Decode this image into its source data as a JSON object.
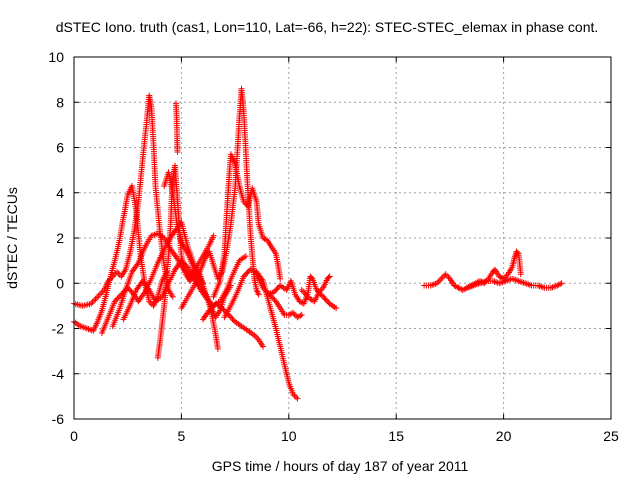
{
  "chart_data": {
    "type": "scatter",
    "title": "dSTEC Iono. truth (cas1, Lon=110, Lat=-66, h=22): STEC-STEC_elemax in phase cont.",
    "xlabel": "GPS time / hours of day 187 of year 2011",
    "ylabel": "dSTEC  / TECUs",
    "xlim": [
      0,
      25
    ],
    "ylim": [
      -6,
      10
    ],
    "xticks": [
      0,
      5,
      10,
      15,
      20,
      25
    ],
    "yticks": [
      -6,
      -4,
      -2,
      0,
      2,
      4,
      6,
      8,
      10
    ],
    "xtick_labels": [
      "0",
      "5",
      "10",
      "15",
      "20",
      "25"
    ],
    "ytick_labels": [
      "-6",
      "-4",
      "-2",
      "0",
      "2",
      "4",
      "6",
      "8",
      "10"
    ],
    "grid": true,
    "marker": "+",
    "color": "#ff0000",
    "series": [
      {
        "name": "",
        "tracks": [
          [
            [
              0.0,
              -0.9
            ],
            [
              0.4,
              -1.0
            ],
            [
              0.8,
              -0.9
            ],
            [
              1.0,
              -0.7
            ],
            [
              1.2,
              -0.5
            ],
            [
              1.4,
              -0.3
            ],
            [
              1.6,
              0.1
            ],
            [
              1.8,
              0.3
            ],
            [
              2.0,
              0.5
            ],
            [
              2.2,
              0.3
            ],
            [
              2.4,
              0.6
            ],
            [
              2.6,
              1.3
            ],
            [
              2.8,
              2.3
            ],
            [
              3.0,
              3.6
            ],
            [
              3.2,
              5.5
            ],
            [
              3.4,
              7.3
            ],
            [
              3.5,
              8.3
            ],
            [
              3.6,
              7.8
            ],
            [
              3.7,
              6.2
            ],
            [
              3.8,
              4.2
            ],
            [
              4.0,
              2.3
            ],
            [
              4.2,
              0.8
            ],
            [
              4.4,
              -0.3
            ],
            [
              4.6,
              -0.6
            ]
          ],
          [
            [
              0.0,
              -1.7
            ],
            [
              0.3,
              -1.9
            ],
            [
              0.6,
              -2.0
            ],
            [
              0.9,
              -2.1
            ],
            [
              1.1,
              -1.7
            ],
            [
              1.3,
              -1.2
            ],
            [
              1.5,
              -0.5
            ],
            [
              1.7,
              0.3
            ],
            [
              1.9,
              1.0
            ],
            [
              2.1,
              1.8
            ],
            [
              2.3,
              2.9
            ],
            [
              2.5,
              3.9
            ],
            [
              2.7,
              4.3
            ],
            [
              2.9,
              3.2
            ],
            [
              3.1,
              1.2
            ],
            [
              3.3,
              0.0
            ],
            [
              3.5,
              -0.8
            ],
            [
              3.7,
              -1.0
            ],
            [
              3.9,
              -0.6
            ],
            [
              4.1,
              0.1
            ],
            [
              4.3,
              0.5
            ]
          ],
          [
            [
              1.3,
              -2.2
            ],
            [
              1.6,
              -1.5
            ],
            [
              1.9,
              -0.8
            ],
            [
              2.2,
              -0.5
            ],
            [
              2.5,
              -0.2
            ],
            [
              2.8,
              -0.5
            ],
            [
              3.0,
              -0.8
            ],
            [
              3.3,
              -0.4
            ],
            [
              3.6,
              0.2
            ],
            [
              3.9,
              0.9
            ],
            [
              4.1,
              1.3
            ],
            [
              4.4,
              1.9
            ],
            [
              4.7,
              2.3
            ],
            [
              5.0,
              2.7
            ],
            [
              5.3,
              1.6
            ],
            [
              5.6,
              0.8
            ],
            [
              5.9,
              0.3
            ],
            [
              6.1,
              -0.4
            ],
            [
              6.4,
              -1.1
            ],
            [
              6.6,
              -1.5
            ],
            [
              6.8,
              -1.2
            ],
            [
              7.0,
              -0.6
            ],
            [
              7.3,
              -0.1
            ]
          ],
          [
            [
              1.8,
              -1.9
            ],
            [
              2.1,
              -1.2
            ],
            [
              2.4,
              -0.3
            ],
            [
              2.7,
              0.5
            ],
            [
              3.0,
              0.9
            ],
            [
              3.3,
              1.6
            ],
            [
              3.6,
              2.1
            ],
            [
              3.9,
              2.2
            ],
            [
              4.2,
              2.0
            ],
            [
              4.5,
              1.5
            ],
            [
              4.8,
              1.1
            ],
            [
              5.1,
              0.6
            ],
            [
              5.4,
              0.3
            ],
            [
              5.7,
              0.7
            ],
            [
              6.0,
              1.2
            ],
            [
              6.3,
              1.7
            ],
            [
              6.5,
              2.1
            ]
          ],
          [
            [
              2.3,
              -1.6
            ],
            [
              2.6,
              -1.0
            ],
            [
              2.9,
              -0.3
            ],
            [
              3.2,
              0.1
            ],
            [
              3.5,
              -0.3
            ],
            [
              3.8,
              -0.8
            ],
            [
              4.1,
              -0.6
            ],
            [
              4.4,
              0.0
            ],
            [
              4.7,
              0.6
            ],
            [
              5.0,
              1.0
            ],
            [
              5.3,
              0.7
            ],
            [
              5.6,
              0.2
            ],
            [
              5.9,
              -0.3
            ],
            [
              6.2,
              -0.7
            ],
            [
              6.5,
              -1.0
            ],
            [
              6.8,
              -0.8
            ],
            [
              7.1,
              -0.3
            ],
            [
              7.4,
              0.4
            ],
            [
              7.7,
              1.0
            ],
            [
              8.0,
              1.2
            ]
          ],
          [
            [
              3.9,
              -3.3
            ],
            [
              4.0,
              -2.6
            ],
            [
              4.1,
              -1.8
            ],
            [
              4.2,
              -1.0
            ],
            [
              4.3,
              0.0
            ],
            [
              4.4,
              1.2
            ],
            [
              4.5,
              2.6
            ],
            [
              4.55,
              3.8
            ],
            [
              4.6,
              4.6
            ],
            [
              4.7,
              5.2
            ],
            [
              4.8,
              3.9
            ],
            [
              4.9,
              2.6
            ],
            [
              5.0,
              1.2
            ],
            [
              5.2,
              0.4
            ],
            [
              5.4,
              0.1
            ],
            [
              5.7,
              0.5
            ],
            [
              6.0,
              0.0
            ]
          ],
          [
            [
              4.2,
              4.3
            ],
            [
              4.4,
              4.9
            ],
            [
              4.6,
              4.0
            ],
            [
              4.8,
              2.6
            ],
            [
              5.0,
              1.8
            ],
            [
              5.3,
              1.3
            ],
            [
              5.6,
              0.6
            ],
            [
              5.9,
              -0.1
            ],
            [
              6.2,
              -0.6
            ],
            [
              6.4,
              -1.3
            ],
            [
              6.6,
              -2.3
            ],
            [
              6.7,
              -2.9
            ]
          ],
          [
            [
              5.0,
              -1.1
            ],
            [
              5.3,
              -0.6
            ],
            [
              5.6,
              -0.1
            ],
            [
              5.9,
              0.6
            ],
            [
              6.1,
              1.1
            ],
            [
              6.3,
              1.4
            ],
            [
              6.5,
              0.8
            ],
            [
              6.7,
              0.2
            ],
            [
              6.9,
              0.5
            ],
            [
              7.1,
              1.4
            ],
            [
              7.3,
              2.6
            ],
            [
              7.5,
              4.2
            ],
            [
              7.6,
              5.7
            ],
            [
              7.7,
              7.3
            ],
            [
              7.8,
              8.6
            ],
            [
              7.9,
              7.6
            ],
            [
              8.0,
              5.8
            ],
            [
              8.1,
              4.0
            ],
            [
              8.2,
              2.4
            ],
            [
              8.3,
              1.2
            ],
            [
              8.4,
              0.2
            ],
            [
              8.5,
              -0.3
            ],
            [
              8.6,
              -0.5
            ]
          ],
          [
            [
              6.5,
              -0.6
            ],
            [
              6.8,
              0.1
            ],
            [
              7.0,
              1.3
            ],
            [
              7.1,
              2.9
            ],
            [
              7.2,
              4.4
            ],
            [
              7.3,
              5.7
            ],
            [
              7.5,
              5.3
            ],
            [
              7.7,
              4.3
            ],
            [
              7.9,
              3.6
            ],
            [
              8.1,
              3.4
            ],
            [
              8.3,
              4.2
            ],
            [
              8.5,
              3.6
            ],
            [
              8.6,
              2.6
            ],
            [
              8.8,
              2.0
            ],
            [
              9.0,
              1.9
            ],
            [
              9.2,
              1.6
            ],
            [
              9.4,
              1.3
            ],
            [
              9.5,
              0.8
            ],
            [
              9.6,
              0.2
            ]
          ],
          [
            [
              7.0,
              -1.5
            ],
            [
              7.3,
              -1.0
            ],
            [
              7.6,
              -0.4
            ],
            [
              7.9,
              0.3
            ],
            [
              8.2,
              0.6
            ],
            [
              8.5,
              0.5
            ],
            [
              8.8,
              0.1
            ],
            [
              9.0,
              -0.6
            ],
            [
              9.2,
              -1.3
            ],
            [
              9.4,
              -2.0
            ],
            [
              9.6,
              -2.8
            ],
            [
              9.8,
              -3.6
            ],
            [
              10.0,
              -4.4
            ],
            [
              10.2,
              -4.9
            ],
            [
              10.4,
              -5.1
            ]
          ],
          [
            [
              6.0,
              -1.6
            ],
            [
              6.3,
              -1.2
            ],
            [
              6.6,
              -0.9
            ],
            [
              6.9,
              -1.1
            ],
            [
              7.2,
              -1.4
            ],
            [
              7.5,
              -1.7
            ],
            [
              7.8,
              -1.9
            ],
            [
              8.1,
              -2.1
            ],
            [
              8.4,
              -2.3
            ],
            [
              8.6,
              -2.5
            ],
            [
              8.8,
              -2.8
            ]
          ],
          [
            [
              8.5,
              0.4
            ],
            [
              8.8,
              -0.2
            ],
            [
              9.1,
              -0.5
            ],
            [
              9.4,
              -0.8
            ],
            [
              9.6,
              -1.1
            ],
            [
              9.8,
              -1.4
            ],
            [
              10.0,
              -1.4
            ],
            [
              10.2,
              -1.3
            ],
            [
              10.4,
              -1.5
            ],
            [
              10.6,
              -1.4
            ]
          ],
          [
            [
              9.0,
              -0.5
            ],
            [
              9.3,
              -0.4
            ],
            [
              9.6,
              -0.1
            ],
            [
              9.9,
              -0.3
            ],
            [
              10.1,
              0.1
            ],
            [
              10.3,
              -0.5
            ],
            [
              10.5,
              -0.8
            ],
            [
              10.7,
              -0.9
            ],
            [
              10.9,
              -0.4
            ],
            [
              11.0,
              0.3
            ],
            [
              11.1,
              0.2
            ],
            [
              11.3,
              -0.3
            ],
            [
              11.6,
              -0.6
            ],
            [
              11.9,
              -0.9
            ],
            [
              12.2,
              -1.1
            ]
          ],
          [
            [
              10.6,
              -0.3
            ],
            [
              10.8,
              -0.5
            ],
            [
              11.0,
              -0.7
            ],
            [
              11.2,
              -0.8
            ],
            [
              11.4,
              -0.4
            ],
            [
              11.6,
              -0.2
            ],
            [
              11.8,
              0.2
            ],
            [
              11.9,
              0.3
            ]
          ],
          [
            [
              16.3,
              -0.1
            ],
            [
              16.6,
              -0.1
            ],
            [
              16.9,
              0.0
            ],
            [
              17.1,
              0.2
            ],
            [
              17.3,
              0.4
            ],
            [
              17.5,
              0.2
            ],
            [
              17.7,
              -0.1
            ],
            [
              17.9,
              -0.2
            ],
            [
              18.1,
              -0.3
            ],
            [
              18.3,
              -0.2
            ],
            [
              18.5,
              -0.1
            ],
            [
              18.7,
              0.0
            ],
            [
              18.9,
              0.1
            ],
            [
              19.1,
              0.0
            ],
            [
              19.3,
              0.2
            ],
            [
              19.5,
              0.5
            ],
            [
              19.6,
              0.6
            ],
            [
              19.8,
              0.3
            ],
            [
              20.0,
              0.2
            ],
            [
              20.2,
              0.4
            ],
            [
              20.4,
              0.7
            ],
            [
              20.5,
              1.1
            ],
            [
              20.6,
              1.4
            ],
            [
              20.7,
              1.3
            ],
            [
              20.8,
              0.4
            ]
          ],
          [
            [
              18.3,
              -0.2
            ],
            [
              18.6,
              -0.1
            ],
            [
              18.9,
              0.0
            ],
            [
              19.2,
              0.1
            ],
            [
              19.5,
              0.1
            ],
            [
              19.8,
              0.0
            ],
            [
              20.1,
              0.1
            ],
            [
              20.4,
              0.2
            ],
            [
              20.7,
              0.1
            ],
            [
              21.0,
              0.0
            ],
            [
              21.3,
              -0.1
            ],
            [
              21.6,
              -0.1
            ],
            [
              21.9,
              -0.2
            ],
            [
              22.2,
              -0.2
            ],
            [
              22.5,
              -0.1
            ],
            [
              22.7,
              0.0
            ]
          ],
          [
            [
              4.75,
              7.95
            ],
            [
              4.78,
              7.25
            ],
            [
              4.8,
              6.4
            ],
            [
              4.82,
              5.8
            ]
          ]
        ]
      }
    ]
  }
}
